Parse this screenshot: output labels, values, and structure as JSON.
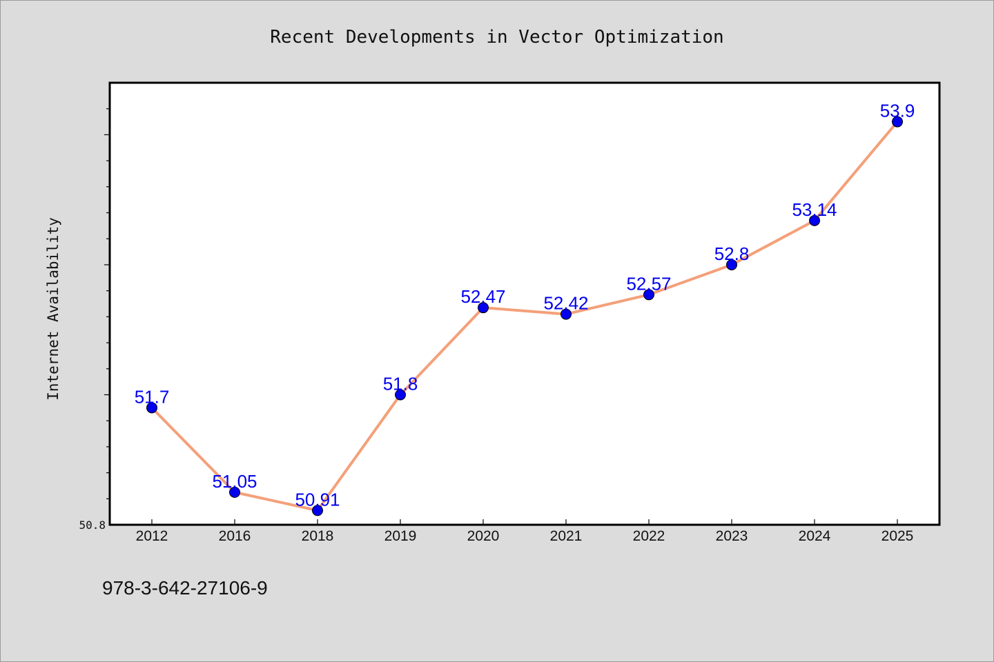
{
  "chart_data": {
    "type": "line",
    "title": "Recent Developments in Vector Optimization",
    "xlabel": "",
    "ylabel": "Internet Availability",
    "categories": [
      "2012",
      "2016",
      "2018",
      "2019",
      "2020",
      "2021",
      "2022",
      "2023",
      "2024",
      "2025"
    ],
    "series": [
      {
        "values": [
          51.7,
          51.05,
          50.91,
          51.8,
          52.47,
          52.42,
          52.57,
          52.8,
          53.14,
          53.9
        ],
        "labels": [
          "51.7",
          "51.05",
          "50.91",
          "51.8",
          "52.47",
          "52.42",
          "52.57",
          "52.8",
          "53.14",
          "53.9"
        ],
        "line_color": "#f4a07a",
        "marker_color": "#0000ee"
      }
    ],
    "ylim": [
      50.8,
      54.2
    ],
    "yticks_labeled": [
      "50.8"
    ],
    "grid": false,
    "legend": "none"
  },
  "footnote": "978-3-642-27106-9",
  "colors": {
    "background": "#dcdcdc",
    "plot_background": "#ffffff",
    "line": "#f4a07a",
    "marker": "#0000ee",
    "data_label": "#0000ee"
  }
}
